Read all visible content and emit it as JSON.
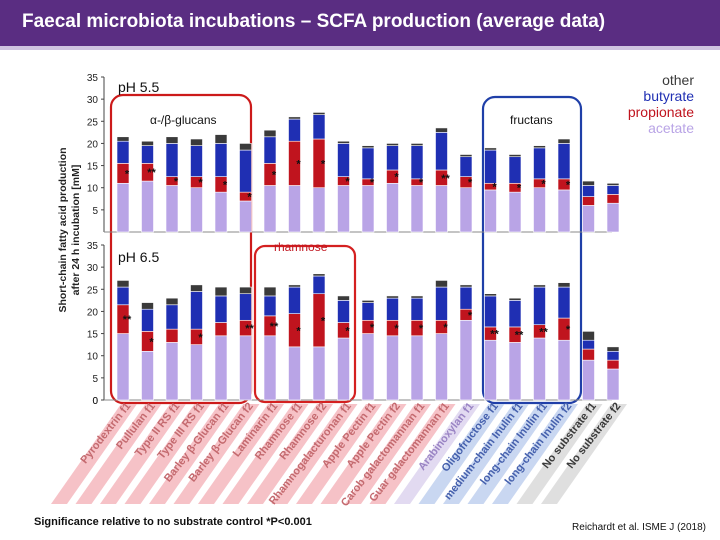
{
  "title": "Faecal microbiota incubations – SCFA production (average data)",
  "footnote": "Significance relative to no substrate control  *P<0.001",
  "citation": "Reichardt et al. ISME J (2018)",
  "chart_data": {
    "type": "stacked-bar",
    "ylabel": "Short-chain fatty acid production after 24 h incubation [mM]",
    "ylim": [
      0,
      35
    ],
    "yticks": [
      0,
      5,
      10,
      15,
      20,
      25,
      30,
      35
    ],
    "series_names": [
      "acetate",
      "propionate",
      "butyrate",
      "other"
    ],
    "legend": [
      {
        "label": "other",
        "color": "#3a3a3a"
      },
      {
        "label": "butyrate",
        "color": "#1f2fb3"
      },
      {
        "label": "propionate",
        "color": "#c0141e"
      },
      {
        "label": "acetate",
        "color": "#b9a4e6"
      }
    ],
    "colors": {
      "acetate": "#b9a4e6",
      "propionate": "#c0141e",
      "butyrate": "#1f2fb3",
      "other": "#3a3a3a"
    },
    "categories": [
      "Pyrodextrin f1",
      "Pullulan f1",
      "Type II RS f1",
      "Type III RS f1",
      "Barley β-Glucan f1",
      "Barley β-Glucan f2",
      "Laminarin f1",
      "Rhamnose f1",
      "Rhamnose f2",
      "Rhamnogalacturonan f1",
      "Apple Pectin f1",
      "Apple Pectin f2",
      "Carob galactomannan f1",
      "Guar galactomannan f1",
      "Arabinoxylan f1",
      "Oligofructose f1",
      "medium-chain Inulin f1",
      "long-chain Inulin f1",
      "long-chain Inulin f2",
      "No substrate f1",
      "No substrate f2"
    ],
    "label_colors": [
      "#c46a6f",
      "#c46a6f",
      "#c46a6f",
      "#c46a6f",
      "#c46a6f",
      "#c46a6f",
      "#c46a6f",
      "#c46a6f",
      "#c46a6f",
      "#c46a6f",
      "#c46a6f",
      "#c46a6f",
      "#c46a6f",
      "#c46a6f",
      "#9a84c4",
      "#4560ad",
      "#4560ad",
      "#4560ad",
      "#4560ad",
      "#3a3a3a",
      "#3a3a3a"
    ],
    "panels": [
      {
        "label": "pH 5.5",
        "annotations": [
          "α-/β-glucans",
          "fructans"
        ],
        "acetate": [
          11,
          11.5,
          10.5,
          10,
          9,
          7,
          10.5,
          10.5,
          10,
          10.5,
          10.5,
          11,
          10.5,
          10.5,
          10,
          9.5,
          9,
          10,
          9.5,
          6,
          6.5
        ],
        "propionate": [
          4.5,
          4,
          2,
          2.5,
          3.5,
          2,
          5,
          10,
          11,
          2,
          1.5,
          3,
          1.5,
          3.5,
          2.5,
          1.5,
          2,
          2,
          2.5,
          2,
          2
        ],
        "butyrate": [
          5,
          4,
          7.5,
          7,
          7.5,
          9.5,
          6,
          5,
          5.5,
          7.5,
          7,
          5.5,
          7.5,
          8.5,
          4.5,
          7.5,
          6,
          7,
          8,
          2.5,
          2
        ],
        "other": [
          1,
          1,
          1.5,
          1.5,
          2,
          1.5,
          1.5,
          0.5,
          0.5,
          0.5,
          0.5,
          0.5,
          0.5,
          1,
          0.5,
          0.5,
          0.5,
          0.5,
          1,
          1,
          0.5
        ],
        "stars": [
          "*",
          "**",
          "*",
          "*",
          "*",
          "*",
          "*",
          "*",
          "*",
          "*",
          "*",
          "*",
          "*",
          "**",
          "*",
          "*",
          "*",
          "*",
          "*",
          "",
          ""
        ]
      },
      {
        "label": "pH 6.5",
        "annotations": [
          "rhamnose"
        ],
        "acetate": [
          15,
          11,
          13,
          12.5,
          14.5,
          14.5,
          14.5,
          12,
          12,
          14,
          15,
          14.5,
          14.5,
          15,
          18,
          13.5,
          13,
          14,
          13.5,
          9,
          7
        ],
        "propionate": [
          6.5,
          4.5,
          3,
          3.5,
          3,
          3.5,
          4.5,
          7.5,
          12,
          3.5,
          3,
          3.5,
          3.5,
          3,
          2.5,
          3,
          3.5,
          3,
          5,
          2.5,
          2
        ],
        "butyrate": [
          4,
          5,
          5.5,
          8.5,
          6,
          6,
          4.5,
          6,
          4,
          5,
          4,
          5,
          5,
          7.5,
          5,
          7,
          6,
          8.5,
          7,
          2,
          2
        ],
        "other": [
          1.5,
          1.5,
          1.5,
          1.5,
          2,
          1.5,
          2,
          0.5,
          0.5,
          1,
          0.5,
          0.5,
          0.5,
          1.5,
          0.5,
          0.5,
          0.5,
          0.5,
          1,
          2,
          1
        ],
        "stars": [
          "**",
          "*",
          "",
          "*",
          "",
          "**",
          "**",
          "*",
          "*",
          "*",
          "*",
          "*",
          "*",
          "*",
          "*",
          "**",
          "**",
          "**",
          "*",
          "",
          ""
        ]
      }
    ]
  }
}
